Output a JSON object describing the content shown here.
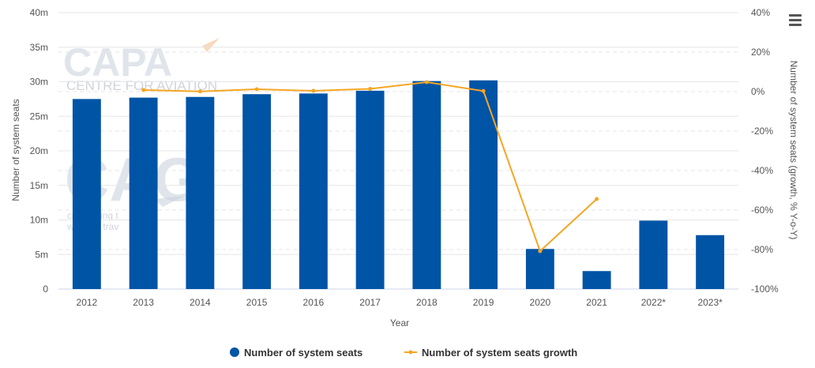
{
  "watermark": {
    "brand": "CAPA",
    "tagline": "CENTRE FOR AVIATION",
    "mark": "CAG",
    "sub_line1": "connecting t",
    "sub_line2": "world of trav"
  },
  "legend": [
    {
      "label": "Number of system seats",
      "color": "#0054a6",
      "marker": "circle"
    },
    {
      "label": "Number of system seats growth",
      "color": "#f5a623",
      "marker": "line-dot"
    }
  ],
  "menu": {
    "icon": "hamburger-menu-icon"
  },
  "chart_data": {
    "type": "bar",
    "categories": [
      "2012",
      "2013",
      "2014",
      "2015",
      "2016",
      "2017",
      "2018",
      "2019",
      "2020",
      "2021",
      "2022*",
      "2023*"
    ],
    "series": [
      {
        "name": "Number of system seats",
        "type": "bar",
        "axis": "left",
        "color": "#0054a6",
        "values": [
          27.5,
          27.7,
          27.8,
          28.2,
          28.3,
          28.7,
          30.1,
          30.2,
          5.8,
          2.6,
          9.9,
          7.8
        ]
      },
      {
        "name": "Number of system seats growth",
        "type": "line",
        "axis": "right",
        "color": "#f5a623",
        "values": [
          null,
          0.8,
          0.1,
          1.2,
          0.4,
          1.4,
          4.8,
          0.3,
          -80.8,
          -54.4,
          null,
          null
        ]
      }
    ],
    "xlabel": "Year",
    "ylabel_left": "Number of system seats",
    "ylabel_right": "Number of system seats (growth, % Y-o-Y)",
    "left_axis": {
      "min": 0,
      "max": 40,
      "step": 5,
      "ticks": [
        "0",
        "5m",
        "10m",
        "15m",
        "20m",
        "25m",
        "30m",
        "35m",
        "40m"
      ]
    },
    "right_axis": {
      "min": -100,
      "max": 40,
      "step": 20,
      "ticks": [
        "-100%",
        "-80%",
        "-60%",
        "-40%",
        "-20%",
        "0%",
        "20%",
        "40%"
      ]
    },
    "grid": true,
    "legend_position": "bottom-center"
  }
}
